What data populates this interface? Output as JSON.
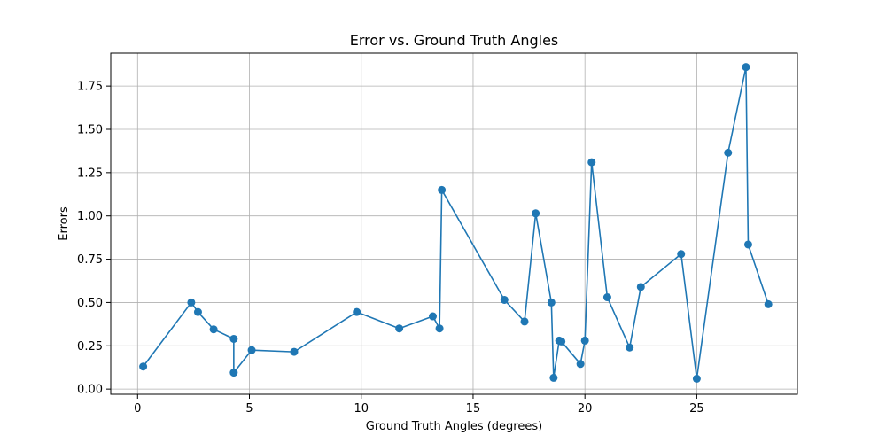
{
  "chart_data": {
    "type": "line",
    "title": "Error vs. Ground Truth Angles",
    "xlabel": "Ground Truth Angles (degrees)",
    "ylabel": "Errors",
    "xlim": [
      -1.2,
      29.5
    ],
    "ylim": [
      -0.03,
      1.94
    ],
    "xticks": [
      0,
      5,
      10,
      15,
      20,
      25
    ],
    "xtick_labels": [
      "0",
      "5",
      "10",
      "15",
      "20",
      "25"
    ],
    "yticks": [
      0.0,
      0.25,
      0.5,
      0.75,
      1.0,
      1.25,
      1.5,
      1.75
    ],
    "ytick_labels": [
      "0.00",
      "0.25",
      "0.50",
      "0.75",
      "1.00",
      "1.25",
      "1.50",
      "1.75"
    ],
    "grid": true,
    "markers": true,
    "series": [
      {
        "color": "#1f77b4",
        "x": [
          0.25,
          2.4,
          2.7,
          3.4,
          4.3,
          4.3,
          5.1,
          7.0,
          9.8,
          11.7,
          13.2,
          13.5,
          13.6,
          16.4,
          17.3,
          17.8,
          18.5,
          18.6,
          18.85,
          18.95,
          19.8,
          20.0,
          20.3,
          21.0,
          22.0,
          22.5,
          24.3,
          25.0,
          26.4,
          27.2,
          27.3,
          28.2
        ],
        "y": [
          0.13,
          0.5,
          0.445,
          0.345,
          0.29,
          0.095,
          0.225,
          0.215,
          0.445,
          0.35,
          0.42,
          0.35,
          1.15,
          0.515,
          0.39,
          1.015,
          0.5,
          0.065,
          0.28,
          0.275,
          0.145,
          0.28,
          1.31,
          0.53,
          0.24,
          0.59,
          0.78,
          0.06,
          1.365,
          1.86,
          0.835,
          0.49
        ]
      }
    ]
  }
}
